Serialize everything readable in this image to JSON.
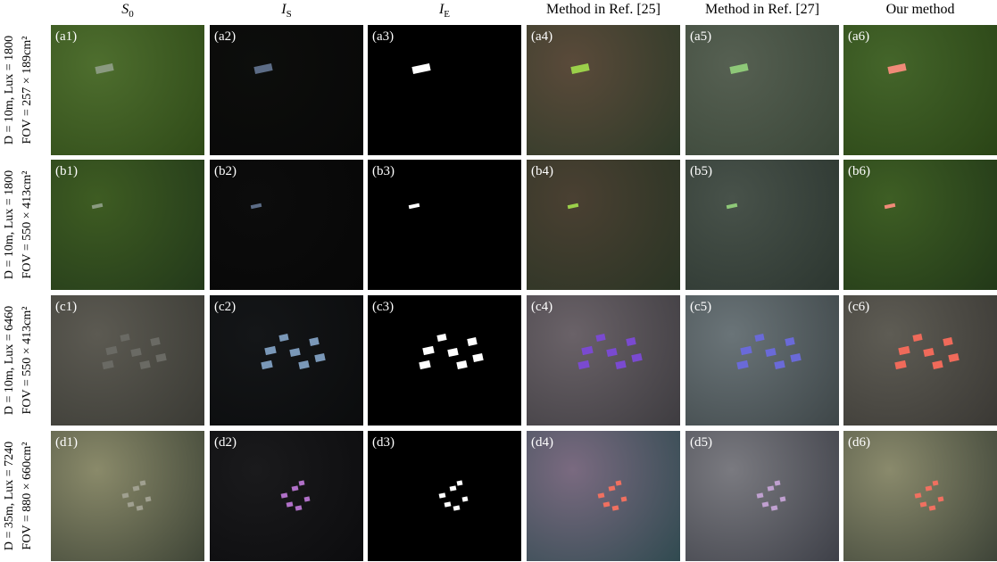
{
  "columns": [
    {
      "main": "S",
      "sub": "0"
    },
    {
      "main": "I",
      "sub": "S"
    },
    {
      "main": "I",
      "sub": "E"
    },
    {
      "main": "Method in Ref. [25]"
    },
    {
      "main": "Method in Ref. [27]"
    },
    {
      "main": "Our method"
    }
  ],
  "rows": [
    {
      "lines": [
        "D = 10m, Lux = 1800",
        "FOV = 257 × 189cm²"
      ],
      "panels": [
        "(a1)",
        "(a2)",
        "(a3)",
        "(a4)",
        "(a5)",
        "(a6)"
      ]
    },
    {
      "lines": [
        "D = 10m, Lux = 1800",
        "FOV = 550 × 413cm²"
      ],
      "panels": [
        "(b1)",
        "(b2)",
        "(b3)",
        "(b4)",
        "(b5)",
        "(b6)"
      ]
    },
    {
      "lines": [
        "D = 10m, Lux = 6460",
        "FOV = 550 × 413cm²"
      ],
      "panels": [
        "(c1)",
        "(c2)",
        "(c3)",
        "(c4)",
        "(c5)",
        "(c6)"
      ]
    },
    {
      "lines": [
        "D = 35m, Lux = 7240",
        "FOV = 880 × 660cm²"
      ],
      "panels": [
        "(d1)",
        "(d2)",
        "(d3)",
        "(d4)",
        "(d5)",
        "(d6)"
      ]
    }
  ]
}
